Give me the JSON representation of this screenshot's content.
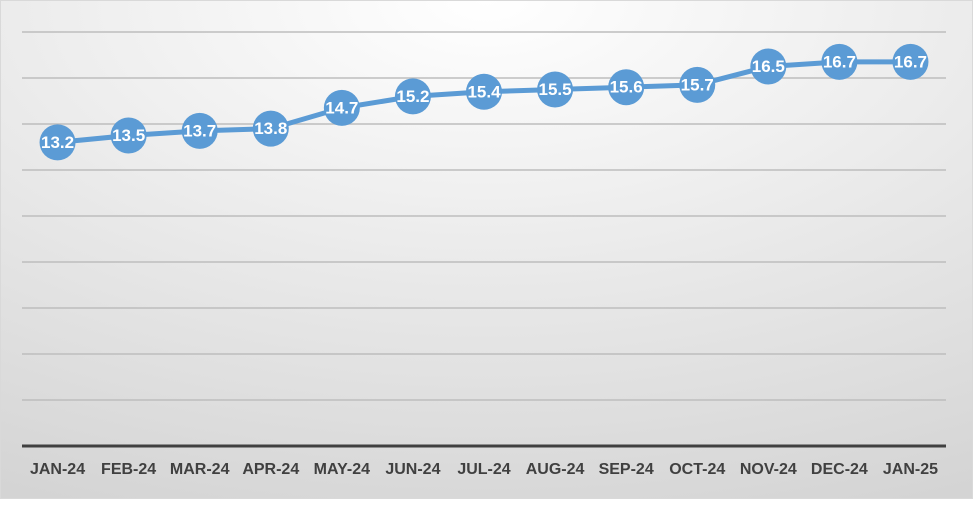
{
  "chart_data": {
    "type": "line",
    "categories": [
      "JAN-24",
      "FEB-24",
      "MAR-24",
      "APR-24",
      "MAY-24",
      "JUN-24",
      "JUL-24",
      "AUG-24",
      "SEP-24",
      "OCT-24",
      "NOV-24",
      "DEC-24",
      "JAN-25"
    ],
    "values": [
      13.2,
      13.5,
      13.7,
      13.8,
      14.7,
      15.2,
      15.4,
      15.5,
      15.6,
      15.7,
      16.5,
      16.7,
      16.7
    ],
    "color": "#5b9bd5",
    "ylim": [
      0,
      18
    ],
    "yticks": [
      0,
      2,
      4,
      6,
      8,
      10,
      12,
      14,
      16,
      18
    ],
    "grid": true
  }
}
